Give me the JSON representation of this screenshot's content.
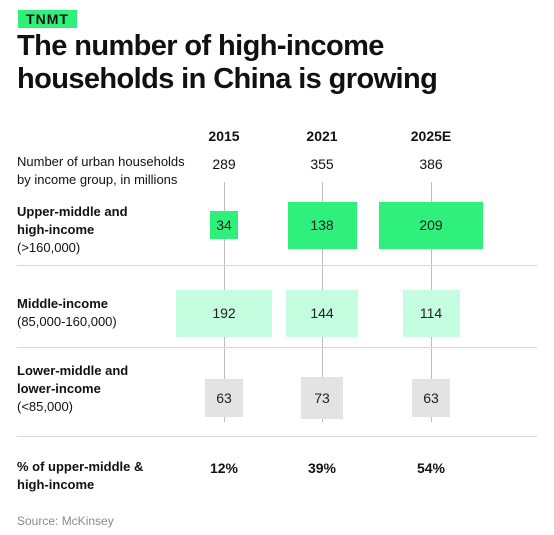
{
  "brand": {
    "logo_text": "TNMT",
    "accent": "#2ef07a"
  },
  "title_lines": [
    "The number of high-income",
    "households in China is growing"
  ],
  "totals_label_lines": [
    "Number of urban households",
    "by income group, in millions"
  ],
  "chart_data": {
    "type": "table",
    "columns": [
      "2015",
      "2021",
      "2025E"
    ],
    "totals": [
      "289",
      "355",
      "386"
    ],
    "rows": [
      {
        "label": "Upper-middle and high-income",
        "label_lines": [
          "Upper-middle and",
          "high-income"
        ],
        "range": "(>160,000)",
        "color": "#2ef07a",
        "values": [
          34,
          138,
          209
        ]
      },
      {
        "label": "Middle-income",
        "label_lines": [
          "Middle-income"
        ],
        "range": "(85,000-160,000)",
        "color": "#c4fde0",
        "values": [
          192,
          144,
          114
        ]
      },
      {
        "label": "Lower-middle and lower-income",
        "label_lines": [
          "Lower-middle and",
          "lower-income"
        ],
        "range": "(<85,000)",
        "color": "#e3e3e3",
        "values": [
          63,
          73,
          63
        ]
      }
    ],
    "share_label_lines": [
      "% of upper-middle &",
      "high-income"
    ],
    "share_values": [
      "12%",
      "39%",
      "54%"
    ]
  },
  "source": "Source: McKinsey"
}
